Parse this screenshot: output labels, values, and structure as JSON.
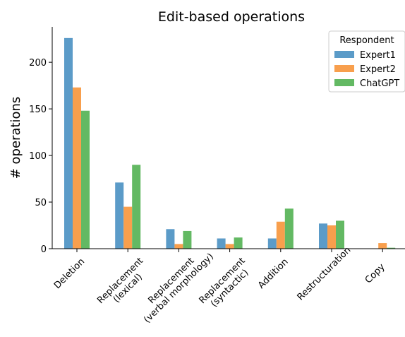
{
  "chart_data": {
    "type": "bar",
    "title": "Edit-based operations",
    "xlabel": "",
    "ylabel": "# operations",
    "ylim": [
      0,
      238
    ],
    "yticks": [
      0,
      50,
      100,
      150,
      200
    ],
    "categories": [
      "Deletion",
      "Replacement\n(lexical)",
      "Replacement\n(verbal morphology)",
      "Replacement\n(syntactic)",
      "Addition",
      "Restructuration",
      "Copy"
    ],
    "series": [
      {
        "name": "Expert1",
        "color": "#5b9bc8",
        "values": [
          226,
          71,
          21,
          11,
          11,
          27,
          0
        ]
      },
      {
        "name": "Expert2",
        "color": "#f89f4d",
        "values": [
          173,
          45,
          5,
          5,
          29,
          25,
          6
        ]
      },
      {
        "name": "ChatGPT",
        "color": "#63b963",
        "values": [
          148,
          90,
          19,
          12,
          43,
          30,
          1
        ]
      }
    ],
    "legend": {
      "title": "Respondent",
      "placement": "top-right"
    },
    "grid": false
  }
}
